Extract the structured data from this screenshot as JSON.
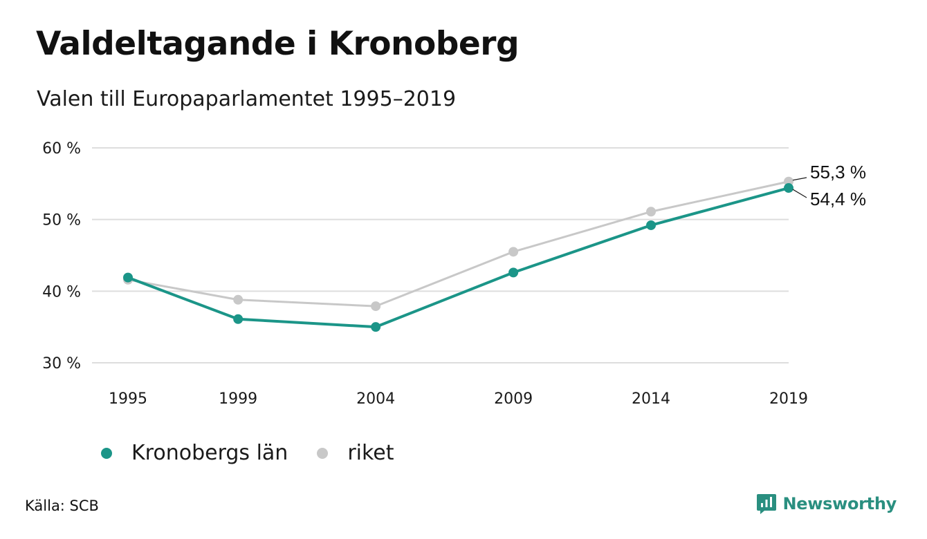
{
  "header": {
    "title": "Valdeltagande i Kronoberg",
    "subtitle": "Valen till Europaparlamentet 1995–2019"
  },
  "footer": {
    "source": "Källa: SCB",
    "brand": "Newsworthy"
  },
  "colors": {
    "kronoberg": "#1b9588",
    "riket": "#c8c8c8",
    "grid": "#dddddd",
    "brand": "#2a8f80"
  },
  "chart_data": {
    "type": "line",
    "title": "Valdeltagande i Kronoberg",
    "subtitle": "Valen till Europaparlamentet 1995–2019",
    "categories": [
      "1995",
      "1999",
      "2004",
      "2009",
      "2014",
      "2019"
    ],
    "x": [
      1995,
      1999,
      2004,
      2009,
      2014,
      2019
    ],
    "ylim": [
      30,
      60
    ],
    "yticks": [
      30,
      40,
      50,
      60
    ],
    "ytick_labels": [
      "30 %",
      "40 %",
      "50 %",
      "60 %"
    ],
    "grid": true,
    "legend_position": "bottom-left",
    "series": [
      {
        "name": "Kronobergs län",
        "values": [
          41.9,
          36.1,
          35.0,
          42.6,
          49.2,
          54.4
        ],
        "color": "#1b9588"
      },
      {
        "name": "riket",
        "values": [
          41.6,
          38.8,
          37.9,
          45.5,
          51.1,
          55.3
        ],
        "color": "#c8c8c8"
      }
    ],
    "annotations": [
      {
        "series": "riket",
        "label": "55,3 %"
      },
      {
        "series": "Kronobergs län",
        "label": "54,4 %"
      }
    ]
  }
}
